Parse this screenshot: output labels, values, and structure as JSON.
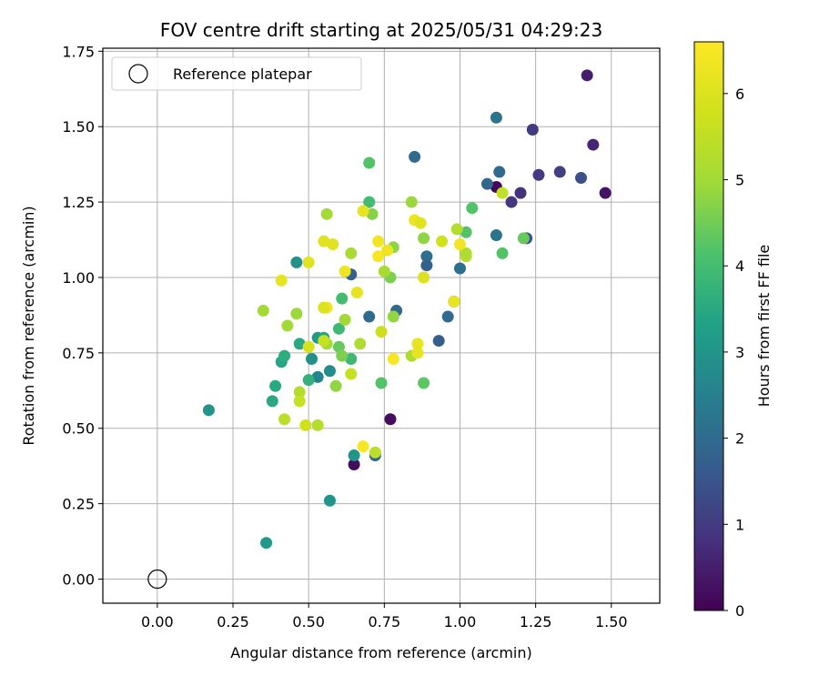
{
  "chart_data": {
    "type": "scatter",
    "title": "FOV centre drift starting at 2025/05/31 04:29:23",
    "xlabel": "Angular distance from reference (arcmin)",
    "ylabel": "Rotation from reference (arcmin)",
    "xlim": [
      -0.18,
      1.66
    ],
    "ylim": [
      -0.08,
      1.76
    ],
    "xticks": [
      "0.00",
      "0.25",
      "0.50",
      "0.75",
      "1.00",
      "1.25",
      "1.50"
    ],
    "xtick_values": [
      0,
      0.25,
      0.5,
      0.75,
      1.0,
      1.25,
      1.5
    ],
    "yticks": [
      "0.00",
      "0.25",
      "0.50",
      "0.75",
      "1.00",
      "1.25",
      "1.50",
      "1.75"
    ],
    "ytick_values": [
      0,
      0.25,
      0.5,
      0.75,
      1.0,
      1.25,
      1.5,
      1.75
    ],
    "grid": true,
    "legend": {
      "placement": "top-left",
      "entries": [
        "Reference platepar"
      ]
    },
    "reference_point": {
      "x": 0.0,
      "y": 0.0,
      "label": "Reference platepar"
    },
    "colorbar": {
      "label": "Hours from first FF file",
      "colormap": "viridis",
      "range": [
        0,
        6.6
      ],
      "ticks": [
        "0",
        "1",
        "2",
        "3",
        "4",
        "5",
        "6"
      ],
      "tick_values": [
        0,
        1,
        2,
        3,
        4,
        5,
        6
      ]
    },
    "points": [
      {
        "x": 1.42,
        "y": 1.67,
        "c": 0.5
      },
      {
        "x": 1.48,
        "y": 1.28,
        "c": 0.3
      },
      {
        "x": 1.44,
        "y": 1.44,
        "c": 0.6
      },
      {
        "x": 1.24,
        "y": 1.49,
        "c": 1.0
      },
      {
        "x": 1.33,
        "y": 1.35,
        "c": 1.1
      },
      {
        "x": 1.26,
        "y": 1.34,
        "c": 1.0
      },
      {
        "x": 1.4,
        "y": 1.33,
        "c": 1.4
      },
      {
        "x": 1.2,
        "y": 1.28,
        "c": 0.8
      },
      {
        "x": 1.17,
        "y": 1.25,
        "c": 0.9
      },
      {
        "x": 1.22,
        "y": 1.13,
        "c": 1.5
      },
      {
        "x": 1.12,
        "y": 1.3,
        "c": 0.1
      },
      {
        "x": 1.12,
        "y": 1.53,
        "c": 2.2
      },
      {
        "x": 1.13,
        "y": 1.35,
        "c": 2.0
      },
      {
        "x": 1.09,
        "y": 1.31,
        "c": 1.9
      },
      {
        "x": 1.12,
        "y": 1.14,
        "c": 2.2
      },
      {
        "x": 0.85,
        "y": 1.4,
        "c": 2.0
      },
      {
        "x": 0.89,
        "y": 1.07,
        "c": 2.1
      },
      {
        "x": 0.89,
        "y": 1.04,
        "c": 1.8
      },
      {
        "x": 1.0,
        "y": 1.03,
        "c": 2.1
      },
      {
        "x": 0.96,
        "y": 0.87,
        "c": 2.0
      },
      {
        "x": 0.93,
        "y": 0.79,
        "c": 1.7
      },
      {
        "x": 0.98,
        "y": 0.92,
        "c": 0.7
      },
      {
        "x": 0.64,
        "y": 1.01,
        "c": 1.8
      },
      {
        "x": 0.7,
        "y": 0.87,
        "c": 2.0
      },
      {
        "x": 0.79,
        "y": 0.89,
        "c": 2.0
      },
      {
        "x": 0.72,
        "y": 0.41,
        "c": 1.8
      },
      {
        "x": 0.77,
        "y": 0.53,
        "c": 0.2
      },
      {
        "x": 0.65,
        "y": 0.38,
        "c": 0.2
      },
      {
        "x": 0.65,
        "y": 0.41,
        "c": 3.0
      },
      {
        "x": 0.57,
        "y": 0.26,
        "c": 3.0
      },
      {
        "x": 0.36,
        "y": 0.12,
        "c": 3.1
      },
      {
        "x": 0.17,
        "y": 0.56,
        "c": 3.0
      },
      {
        "x": 0.46,
        "y": 1.05,
        "c": 2.9
      },
      {
        "x": 0.53,
        "y": 0.67,
        "c": 2.6
      },
      {
        "x": 0.57,
        "y": 0.69,
        "c": 2.8
      },
      {
        "x": 0.51,
        "y": 0.73,
        "c": 2.9
      },
      {
        "x": 0.53,
        "y": 0.8,
        "c": 3.1
      },
      {
        "x": 0.55,
        "y": 0.8,
        "c": 3.4
      },
      {
        "x": 0.47,
        "y": 0.78,
        "c": 3.5
      },
      {
        "x": 0.41,
        "y": 0.72,
        "c": 3.4
      },
      {
        "x": 0.42,
        "y": 0.74,
        "c": 3.6
      },
      {
        "x": 0.39,
        "y": 0.64,
        "c": 3.5
      },
      {
        "x": 0.38,
        "y": 0.59,
        "c": 3.5
      },
      {
        "x": 0.5,
        "y": 0.66,
        "c": 3.7
      },
      {
        "x": 0.6,
        "y": 0.83,
        "c": 3.9
      },
      {
        "x": 0.61,
        "y": 0.93,
        "c": 4.0
      },
      {
        "x": 0.7,
        "y": 1.38,
        "c": 4.2
      },
      {
        "x": 0.7,
        "y": 1.25,
        "c": 4.0
      },
      {
        "x": 0.74,
        "y": 0.65,
        "c": 4.2
      },
      {
        "x": 1.02,
        "y": 1.15,
        "c": 4.2
      },
      {
        "x": 1.04,
        "y": 1.23,
        "c": 4.2
      },
      {
        "x": 1.14,
        "y": 1.08,
        "c": 4.2
      },
      {
        "x": 1.21,
        "y": 1.13,
        "c": 4.4
      },
      {
        "x": 0.88,
        "y": 0.65,
        "c": 4.3
      },
      {
        "x": 0.64,
        "y": 0.73,
        "c": 3.9
      },
      {
        "x": 0.6,
        "y": 0.77,
        "c": 4.4
      },
      {
        "x": 0.61,
        "y": 0.74,
        "c": 4.6
      },
      {
        "x": 0.71,
        "y": 1.21,
        "c": 4.7
      },
      {
        "x": 0.77,
        "y": 1.0,
        "c": 4.6
      },
      {
        "x": 0.78,
        "y": 1.1,
        "c": 4.8
      },
      {
        "x": 0.78,
        "y": 0.87,
        "c": 4.8
      },
      {
        "x": 0.84,
        "y": 1.25,
        "c": 4.9
      },
      {
        "x": 0.88,
        "y": 1.13,
        "c": 4.8
      },
      {
        "x": 0.56,
        "y": 1.21,
        "c": 5.0
      },
      {
        "x": 0.35,
        "y": 0.89,
        "c": 5.0
      },
      {
        "x": 0.43,
        "y": 0.84,
        "c": 5.0
      },
      {
        "x": 0.46,
        "y": 0.88,
        "c": 4.9
      },
      {
        "x": 0.59,
        "y": 0.64,
        "c": 4.8
      },
      {
        "x": 0.56,
        "y": 0.78,
        "c": 5.0
      },
      {
        "x": 0.62,
        "y": 0.86,
        "c": 5.0
      },
      {
        "x": 0.64,
        "y": 1.08,
        "c": 5.1
      },
      {
        "x": 0.67,
        "y": 0.78,
        "c": 5.2
      },
      {
        "x": 0.75,
        "y": 1.02,
        "c": 5.1
      },
      {
        "x": 0.84,
        "y": 0.74,
        "c": 5.2
      },
      {
        "x": 0.99,
        "y": 1.16,
        "c": 5.3
      },
      {
        "x": 1.02,
        "y": 1.07,
        "c": 5.4
      },
      {
        "x": 1.02,
        "y": 1.08,
        "c": 5.2
      },
      {
        "x": 1.14,
        "y": 1.28,
        "c": 5.5
      },
      {
        "x": 0.42,
        "y": 0.53,
        "c": 5.4
      },
      {
        "x": 0.47,
        "y": 0.62,
        "c": 5.3
      },
      {
        "x": 0.47,
        "y": 0.59,
        "c": 5.6
      },
      {
        "x": 0.49,
        "y": 0.51,
        "c": 5.8
      },
      {
        "x": 0.53,
        "y": 0.51,
        "c": 5.3
      },
      {
        "x": 0.72,
        "y": 0.42,
        "c": 5.4
      },
      {
        "x": 0.55,
        "y": 0.79,
        "c": 5.6
      },
      {
        "x": 0.5,
        "y": 0.77,
        "c": 5.9
      },
      {
        "x": 0.64,
        "y": 0.68,
        "c": 5.6
      },
      {
        "x": 0.74,
        "y": 0.82,
        "c": 5.7
      },
      {
        "x": 0.88,
        "y": 1.0,
        "c": 5.8
      },
      {
        "x": 0.94,
        "y": 1.12,
        "c": 5.8
      },
      {
        "x": 0.86,
        "y": 0.75,
        "c": 6.2
      },
      {
        "x": 0.86,
        "y": 0.78,
        "c": 6.2
      },
      {
        "x": 0.78,
        "y": 0.73,
        "c": 6.5
      },
      {
        "x": 0.68,
        "y": 0.44,
        "c": 6.5
      },
      {
        "x": 0.66,
        "y": 0.95,
        "c": 6.2
      },
      {
        "x": 0.56,
        "y": 0.9,
        "c": 6.4
      },
      {
        "x": 0.55,
        "y": 0.9,
        "c": 6.0
      },
      {
        "x": 0.58,
        "y": 1.11,
        "c": 6.1
      },
      {
        "x": 0.55,
        "y": 1.12,
        "c": 6.1
      },
      {
        "x": 0.62,
        "y": 1.02,
        "c": 6.3
      },
      {
        "x": 0.68,
        "y": 1.22,
        "c": 6.2
      },
      {
        "x": 0.73,
        "y": 1.07,
        "c": 6.5
      },
      {
        "x": 0.73,
        "y": 1.12,
        "c": 6.4
      },
      {
        "x": 0.76,
        "y": 1.09,
        "c": 6.3
      },
      {
        "x": 0.85,
        "y": 1.19,
        "c": 6.3
      },
      {
        "x": 0.87,
        "y": 1.18,
        "c": 6.1
      },
      {
        "x": 0.88,
        "y": 1.0,
        "c": 6.0
      },
      {
        "x": 0.98,
        "y": 0.92,
        "c": 6.2
      },
      {
        "x": 1.0,
        "y": 1.11,
        "c": 6.4
      },
      {
        "x": 0.5,
        "y": 1.05,
        "c": 6.1
      },
      {
        "x": 0.41,
        "y": 0.99,
        "c": 6.2
      }
    ]
  }
}
